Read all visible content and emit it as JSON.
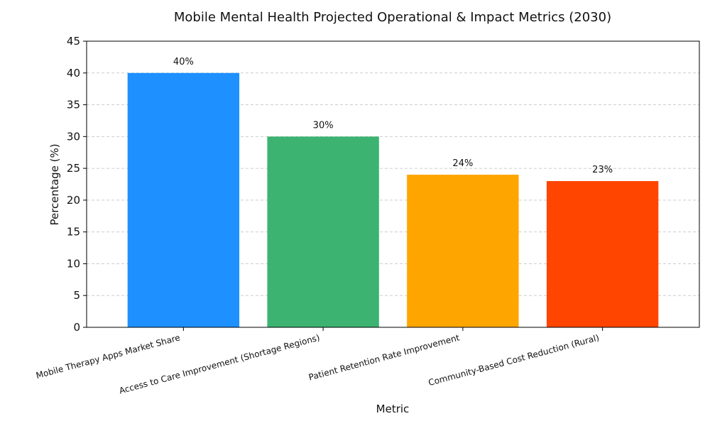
{
  "chart_data": {
    "type": "bar",
    "title": "Mobile Mental Health Projected Operational & Impact Metrics (2030)",
    "xlabel": "Metric",
    "ylabel": "Percentage (%)",
    "categories": [
      "Mobile Therapy Apps Market Share",
      "Access to Care Improvement (Shortage Regions)",
      "Patient Retention Rate Improvement",
      "Community-Based Cost Reduction (Rural)"
    ],
    "values": [
      40,
      30,
      24,
      23
    ],
    "data_labels": [
      "40%",
      "30%",
      "24%",
      "23%"
    ],
    "colors": [
      "#1e90ff",
      "#3cb371",
      "#ffa500",
      "#ff4500"
    ],
    "ylim": [
      0,
      45
    ],
    "yticks": [
      0,
      5,
      10,
      15,
      20,
      25,
      30,
      35,
      40,
      45
    ],
    "grid": "y-dashed"
  }
}
